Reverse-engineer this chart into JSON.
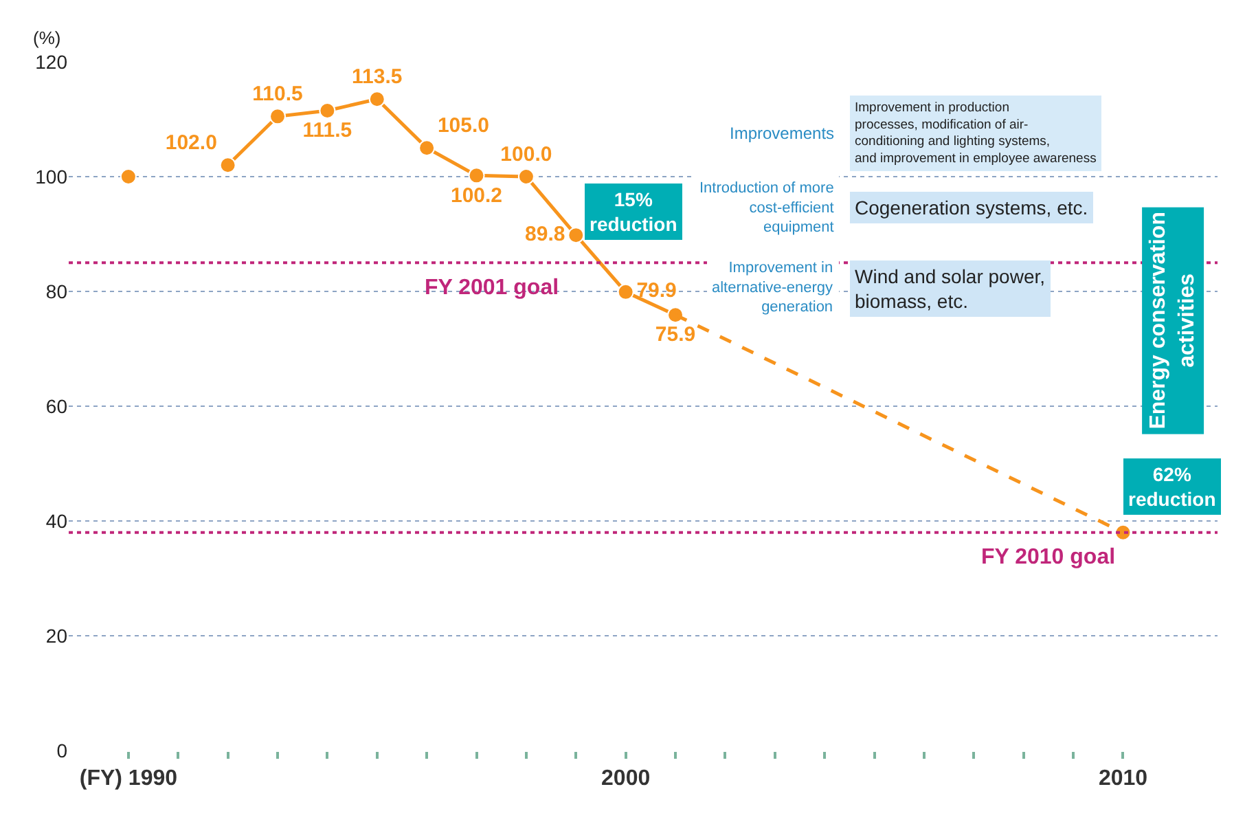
{
  "chart_data": {
    "type": "line",
    "ylabel": "(%)",
    "xlim": [
      1988.8,
      2011.9
    ],
    "ylim": [
      0,
      120
    ],
    "xticks": [
      {
        "value": 1990,
        "label": "(FY) 1990"
      },
      {
        "value": 1991,
        "label": null
      },
      {
        "value": 1992,
        "label": null
      },
      {
        "value": 1993,
        "label": null
      },
      {
        "value": 1994,
        "label": null
      },
      {
        "value": 1995,
        "label": null
      },
      {
        "value": 1996,
        "label": null
      },
      {
        "value": 1997,
        "label": null
      },
      {
        "value": 1998,
        "label": null
      },
      {
        "value": 1999,
        "label": null
      },
      {
        "value": 2000,
        "label": "2000"
      },
      {
        "value": 2001,
        "label": null
      },
      {
        "value": 2002,
        "label": null
      },
      {
        "value": 2003,
        "label": null
      },
      {
        "value": 2004,
        "label": null
      },
      {
        "value": 2005,
        "label": null
      },
      {
        "value": 2006,
        "label": null
      },
      {
        "value": 2007,
        "label": null
      },
      {
        "value": 2008,
        "label": null
      },
      {
        "value": 2009,
        "label": null
      },
      {
        "value": 2010,
        "label": "2010"
      }
    ],
    "yticks": [
      0,
      20,
      40,
      60,
      80,
      100,
      120
    ],
    "grid": "y",
    "series": [
      {
        "type": "line",
        "color": "#f7941d",
        "marker": "circle",
        "line_style": "solid",
        "x": [
          1992,
          1993,
          1994,
          1995,
          1996,
          1997,
          1998,
          1999,
          2000,
          2001
        ],
        "values": [
          102.0,
          110.5,
          111.5,
          113.5,
          105.0,
          100.2,
          100.0,
          89.8,
          79.9,
          75.9
        ],
        "value_labels": [
          "102.0",
          "110.5",
          "111.5",
          "113.5",
          "105.0",
          "100.2",
          "100.0",
          "89.8",
          "79.9",
          "75.9"
        ]
      },
      {
        "type": "line",
        "color": "#f7941d",
        "marker": "none",
        "line_style": "dashed",
        "x": [
          2001,
          2010
        ],
        "values": [
          75.9,
          38
        ]
      },
      {
        "type": "scatter",
        "color": "#f7941d",
        "marker": "circle",
        "x": [
          1990,
          2010
        ],
        "values": [
          100,
          38
        ]
      }
    ],
    "ref_lines": [
      {
        "axis": "y",
        "value": 85,
        "label": "FY 2001 goal",
        "color": "#c0267a",
        "line_style": "dotted"
      },
      {
        "axis": "y",
        "value": 38,
        "label": "FY 2010 goal",
        "color": "#c0267a",
        "line_style": "dotted"
      }
    ],
    "annotations": [
      "Improvements",
      "Improvement in production\nprocesses, modification of air-\nconditioning and lighting systems,\nand improvement in employee awareness",
      "Introduction of more\ncost-efficient\nequipment",
      "Cogeneration systems, etc.",
      "Improvement in\nalternative-energy\ngeneration",
      "Wind and solar power,\nbiomass, etc.",
      "15%\nreduction",
      "Energy conservation\nactivities",
      "62%\nreduction"
    ]
  }
}
